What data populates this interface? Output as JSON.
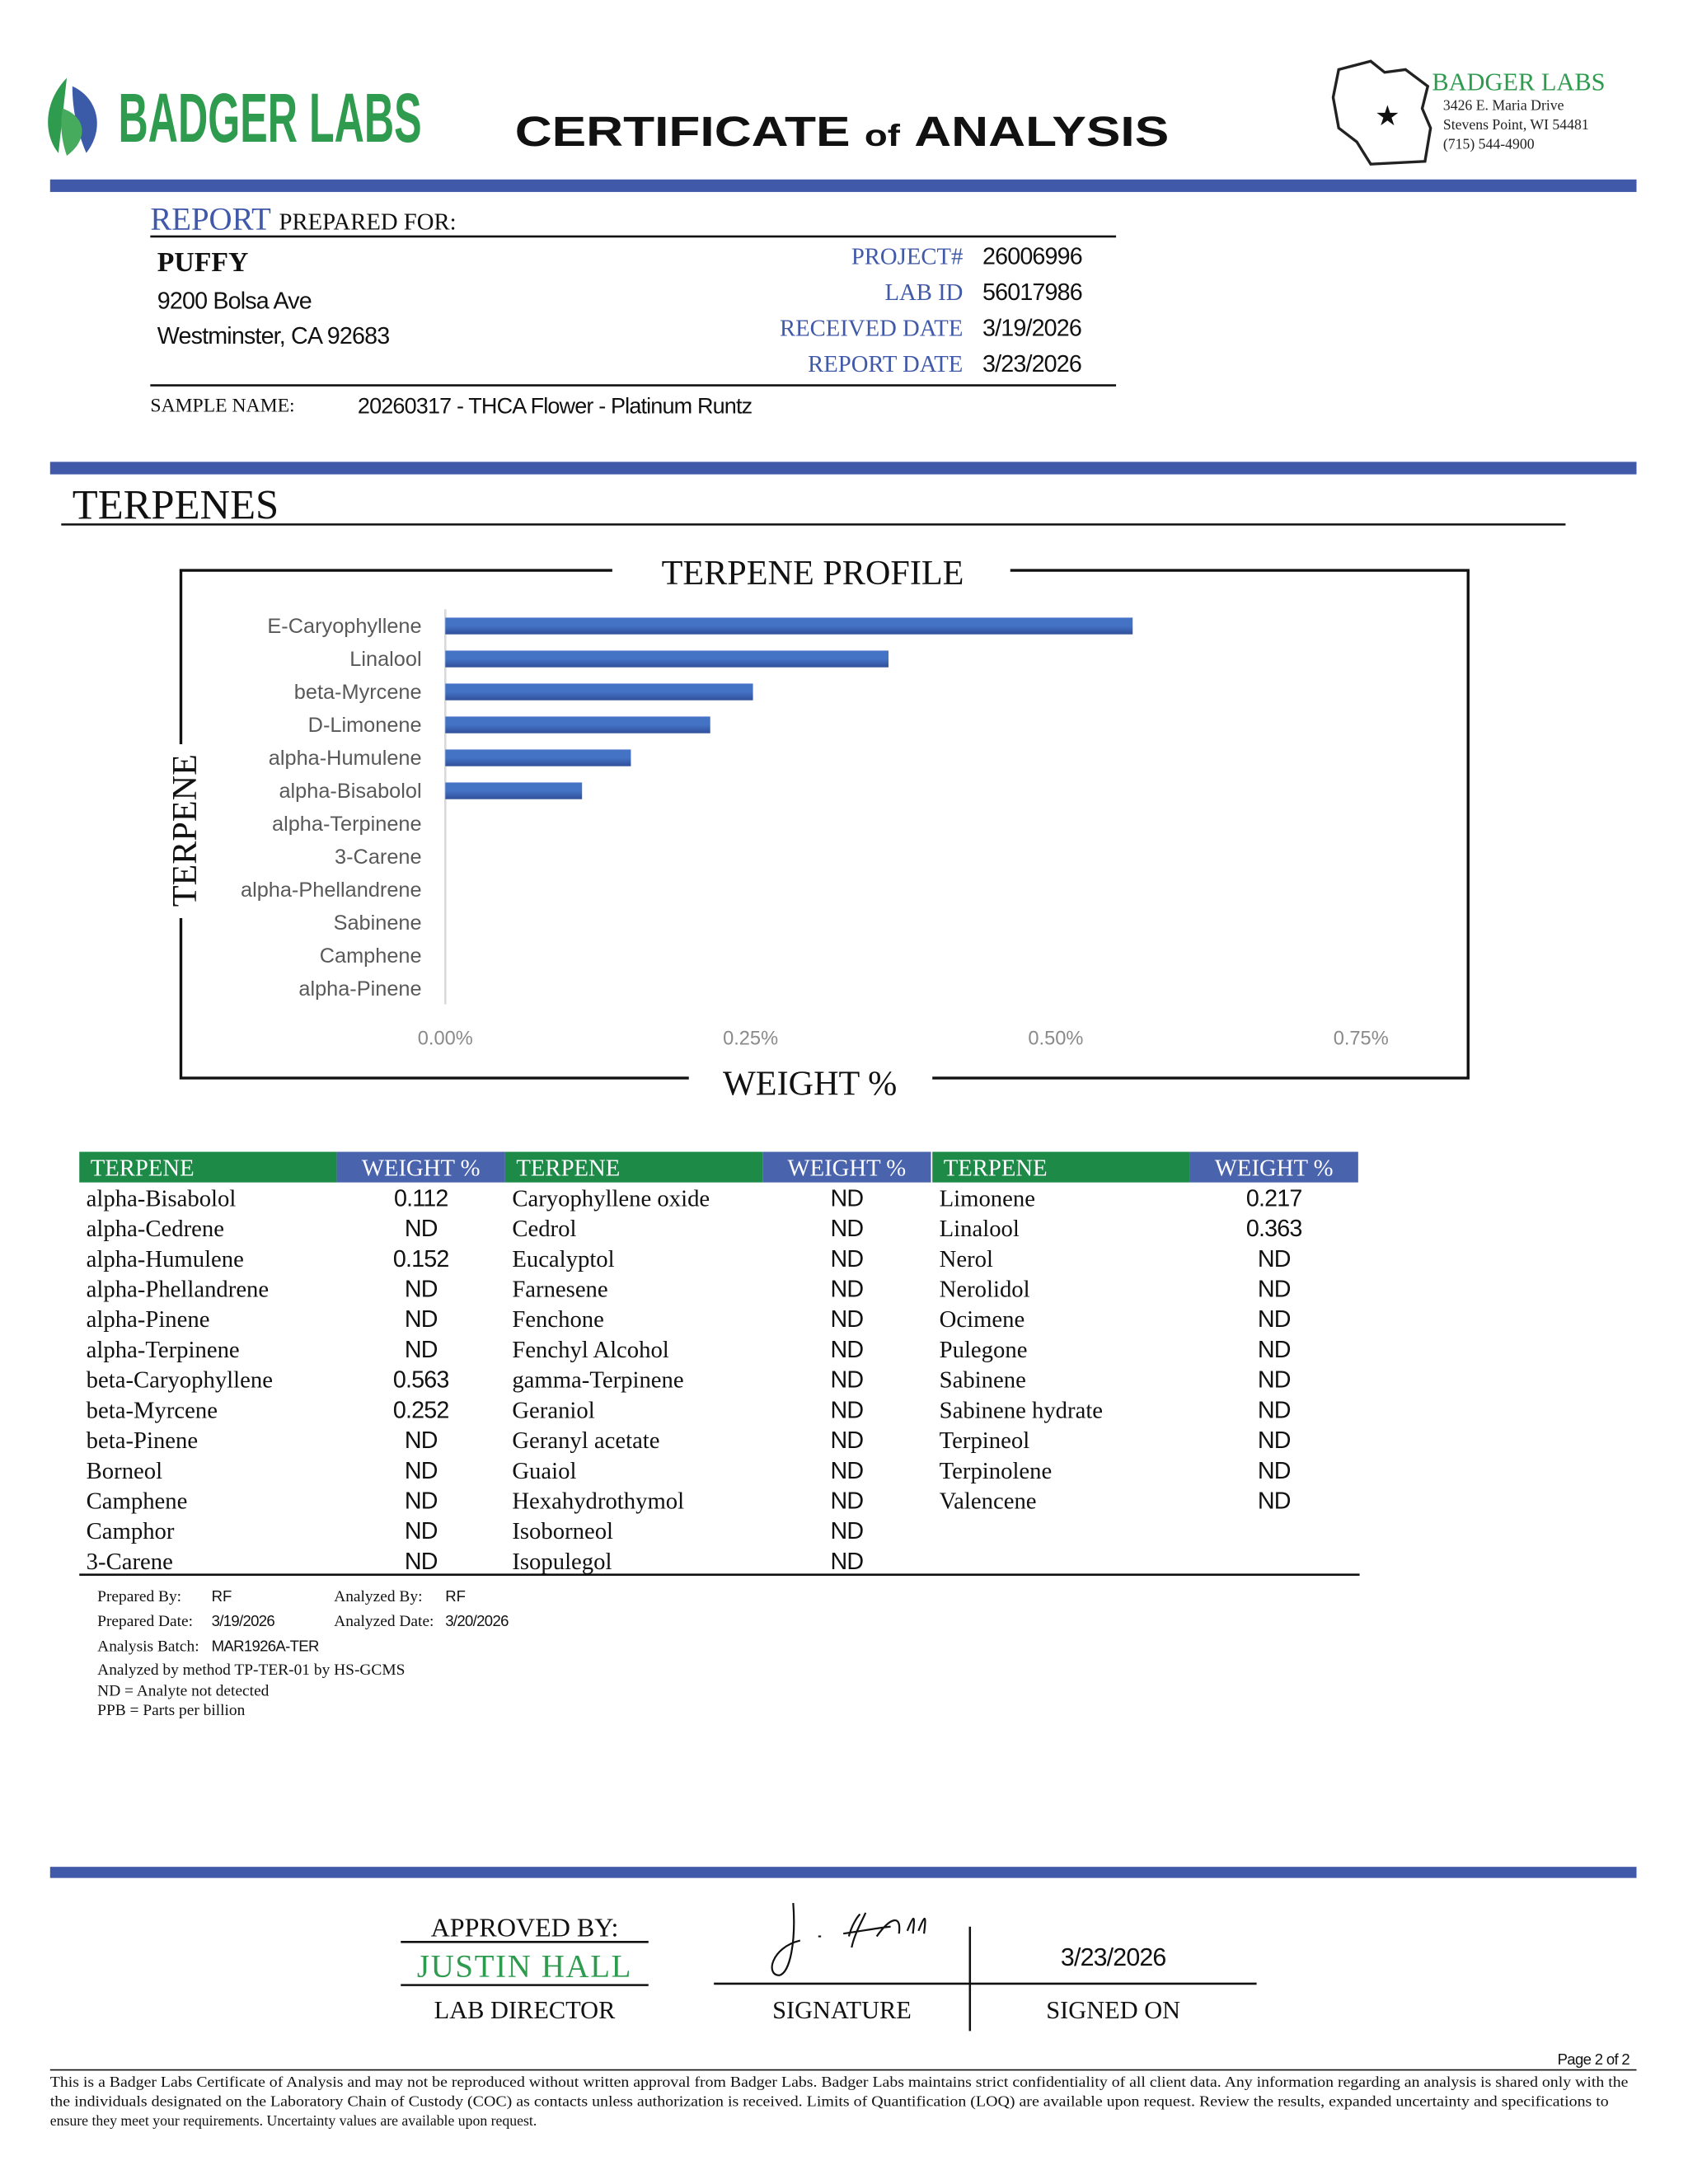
{
  "header": {
    "brand": "BADGER LABS",
    "title_words": [
      "CERTIFICATE",
      "of",
      "ANALYSIS"
    ],
    "lab_name": "BADGER LABS",
    "lab_address": [
      "3426 E. Maria Drive",
      "Stevens Point, WI 54481",
      "(715) 544-4900"
    ]
  },
  "report": {
    "heading": "REPORT",
    "heading_rest": "PREPARED FOR:",
    "client": "PUFFY",
    "client_address": [
      "9200 Bolsa Ave",
      "Westminster, CA 92683"
    ],
    "fields": [
      {
        "label": "PROJECT#",
        "value": "26006996"
      },
      {
        "label": "LAB ID",
        "value": "56017986"
      },
      {
        "label": "RECEIVED DATE",
        "value": "3/19/2026"
      },
      {
        "label": "REPORT DATE",
        "value": "3/23/2026"
      }
    ],
    "sample_label": "SAMPLE NAME:",
    "sample": "20260317 - THCA Flower - Platinum Runtz"
  },
  "section": "TERPENES",
  "chart_data": {
    "type": "bar",
    "orientation": "horizontal",
    "title": "TERPENE PROFILE",
    "x_label": "WEIGHT %",
    "y_label": "TERPENE",
    "categories": [
      "E-Caryophyllene",
      "Linalool",
      "beta-Myrcene",
      "D-Limonene",
      "alpha-Humulene",
      "alpha-Bisabolol",
      "alpha-Terpinene",
      "3-Carene",
      "alpha-Phellandrene",
      "Sabinene",
      "Camphene",
      "alpha-Pinene"
    ],
    "values": [
      0.563,
      0.363,
      0.252,
      0.217,
      0.152,
      0.112,
      0,
      0,
      0,
      0,
      0,
      0
    ],
    "color": "#4472c4",
    "xlim": [
      0,
      0.75
    ],
    "xticks": [
      {
        "value": 0,
        "label": "0.00%"
      },
      {
        "value": 0.25,
        "label": "0.25%"
      },
      {
        "value": 0.5,
        "label": "0.50%"
      },
      {
        "value": 0.75,
        "label": "0.75%"
      }
    ]
  },
  "table": {
    "header": [
      "TERPENE",
      "WEIGHT %"
    ],
    "groups": [
      {
        "rows": [
          [
            "alpha-Bisabolol",
            "0.112"
          ],
          [
            "alpha-Cedrene",
            "ND"
          ],
          [
            "alpha-Humulene",
            "0.152"
          ],
          [
            "alpha-Phellandrene",
            "ND"
          ],
          [
            "alpha-Pinene",
            "ND"
          ],
          [
            "alpha-Terpinene",
            "ND"
          ],
          [
            "beta-Caryophyllene",
            "0.563"
          ],
          [
            "beta-Myrcene",
            "0.252"
          ],
          [
            "beta-Pinene",
            "ND"
          ],
          [
            "Borneol",
            "ND"
          ],
          [
            "Camphene",
            "ND"
          ],
          [
            "Camphor",
            "ND"
          ],
          [
            "3-Carene",
            "ND"
          ]
        ]
      },
      {
        "rows": [
          [
            "Caryophyllene oxide",
            "ND"
          ],
          [
            "Cedrol",
            "ND"
          ],
          [
            "Eucalyptol",
            "ND"
          ],
          [
            "Farnesene",
            "ND"
          ],
          [
            "Fenchone",
            "ND"
          ],
          [
            "Fenchyl Alcohol",
            "ND"
          ],
          [
            "gamma-Terpinene",
            "ND"
          ],
          [
            "Geraniol",
            "ND"
          ],
          [
            "Geranyl acetate",
            "ND"
          ],
          [
            "Guaiol",
            "ND"
          ],
          [
            "Hexahydrothymol",
            "ND"
          ],
          [
            "Isoborneol",
            "ND"
          ],
          [
            "Isopulegol",
            "ND"
          ]
        ]
      },
      {
        "rows": [
          [
            "Limonene",
            "0.217"
          ],
          [
            "Linalool",
            "0.363"
          ],
          [
            "Nerol",
            "ND"
          ],
          [
            "Nerolidol",
            "ND"
          ],
          [
            "Ocimene",
            "ND"
          ],
          [
            "Pulegone",
            "ND"
          ],
          [
            "Sabinene",
            "ND"
          ],
          [
            "Sabinene hydrate",
            "ND"
          ],
          [
            "Terpineol",
            "ND"
          ],
          [
            "Terpinolene",
            "ND"
          ],
          [
            "Valencene",
            "ND"
          ]
        ]
      }
    ]
  },
  "notes": {
    "prepared_by_label": "Prepared By:",
    "prepared_by": "RF",
    "analyzed_by_label": "Analyzed By:",
    "analyzed_by": "RF",
    "prepared_date_label": "Prepared Date:",
    "prepared_date": "3/19/2026",
    "analyzed_date_label": "Analyzed Date:",
    "analyzed_date": "3/20/2026",
    "batch_label": "Analysis Batch:",
    "batch": "MAR1926A-TER",
    "lines": [
      "Analyzed by method TP-TER-01 by HS-GCMS",
      "ND = Analyte not detected",
      "PPB = Parts per billion"
    ]
  },
  "approval": {
    "approved_label": "APPROVED BY:",
    "name": "JUSTIN HALL",
    "role": "LAB DIRECTOR",
    "signature_label": "SIGNATURE",
    "date": "3/23/2026",
    "signed_on_label": "SIGNED ON"
  },
  "footer": {
    "page": "Page 2 of 2",
    "disclaimer": [
      "This is a Badger Labs Certificate of Analysis and may not be reproduced without written approval from Badger Labs. Badger Labs maintains strict confidentiality of all client data. Any information regarding an analysis is shared only with the",
      "the individuals designated on the Laboratory Chain of Custody (COC) as contacts unless authorization is received. Limits of Quantification (LOQ) are available upon request. Review the results, expanded uncertainty and specifications to",
      "ensure they meet your requirements. Uncertainty values are available upon request."
    ]
  }
}
